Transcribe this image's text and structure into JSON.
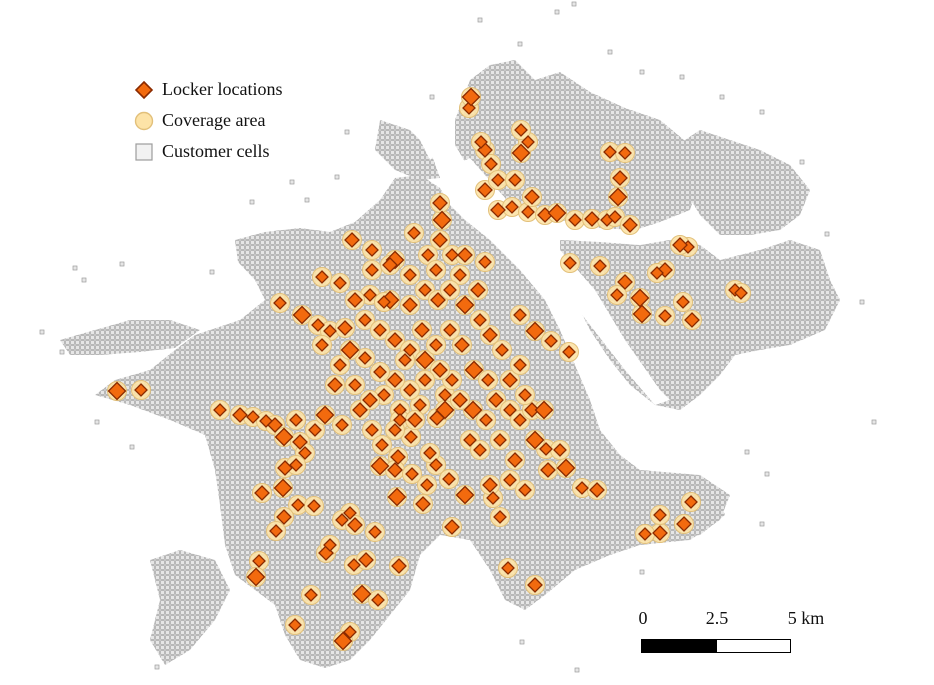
{
  "legend": {
    "lockers_label": "Locker locations",
    "coverage_label": "Coverage area",
    "cells_label": "Customer cells"
  },
  "scale_bar": {
    "tick_0": "0",
    "tick_mid": "2.5",
    "tick_end": "5 km"
  },
  "colors": {
    "locker_fill": "#f26a0e",
    "locker_stroke": "#8a2a00",
    "coverage_fill": "#fde3a7",
    "coverage_stroke": "#e2c07a",
    "cell_fill": "#e4e4e4",
    "cell_stroke": "#9a9a9a"
  }
}
